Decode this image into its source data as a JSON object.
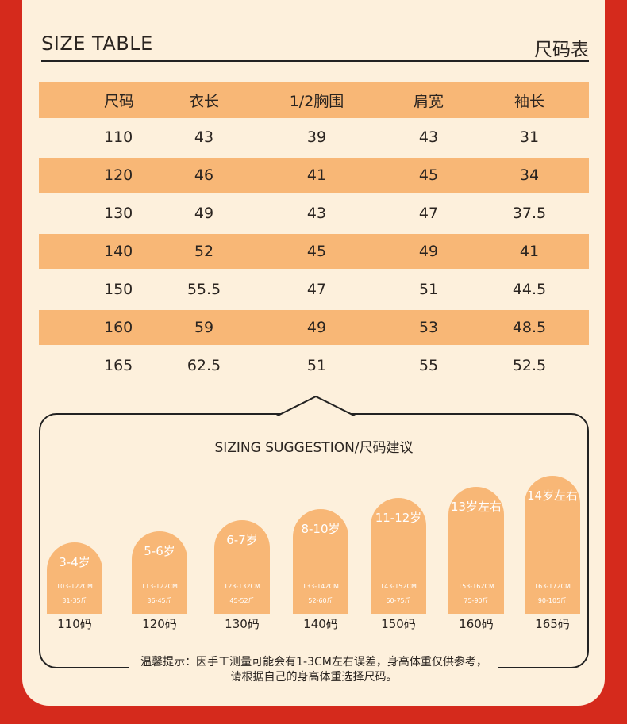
{
  "header": {
    "title_en": "SIZE TABLE",
    "title_cn": "尺码表"
  },
  "table": {
    "columns": [
      "尺码",
      "衣长",
      "1/2胸围",
      "肩宽",
      "袖长"
    ],
    "rows": [
      [
        "110",
        "43",
        "39",
        "43",
        "31"
      ],
      [
        "120",
        "46",
        "41",
        "45",
        "34"
      ],
      [
        "130",
        "49",
        "43",
        "47",
        "37.5"
      ],
      [
        "140",
        "52",
        "45",
        "49",
        "41"
      ],
      [
        "150",
        "55.5",
        "47",
        "51",
        "44.5"
      ],
      [
        "160",
        "59",
        "49",
        "53",
        "48.5"
      ],
      [
        "165",
        "62.5",
        "51",
        "55",
        "52.5"
      ]
    ]
  },
  "suggestion": {
    "title": "SIZING SUGGESTION/尺码建议",
    "items": [
      {
        "age": "3-4岁",
        "height": "103-122CM",
        "weight": "31-35斤",
        "size": "110码",
        "level": 1
      },
      {
        "age": "5-6岁",
        "height": "113-122CM",
        "weight": "36-45斤",
        "size": "120码",
        "level": 2
      },
      {
        "age": "6-7岁",
        "height": "123-132CM",
        "weight": "45-52斤",
        "size": "130码",
        "level": 3
      },
      {
        "age": "8-10岁",
        "height": "133-142CM",
        "weight": "52-60斤",
        "size": "140码",
        "level": 4
      },
      {
        "age": "11-12岁",
        "height": "143-152CM",
        "weight": "60-75斤",
        "size": "150码",
        "level": 5
      },
      {
        "age": "13岁左右",
        "height": "153-162CM",
        "weight": "75-90斤",
        "size": "160码",
        "level": 6
      },
      {
        "age": "14岁左右",
        "height": "163-172CM",
        "weight": "90-105斤",
        "size": "165码",
        "level": 7
      }
    ],
    "tip_line1": "温馨提示：因手工测量可能会有1-3CM左右误差，身高体重仅供参考，",
    "tip_line2": "请根据自己的身高体重选择尺码。"
  },
  "colors": {
    "background": "#d52a1c",
    "panel": "#fdf0dc",
    "accent": "#f8b776"
  }
}
